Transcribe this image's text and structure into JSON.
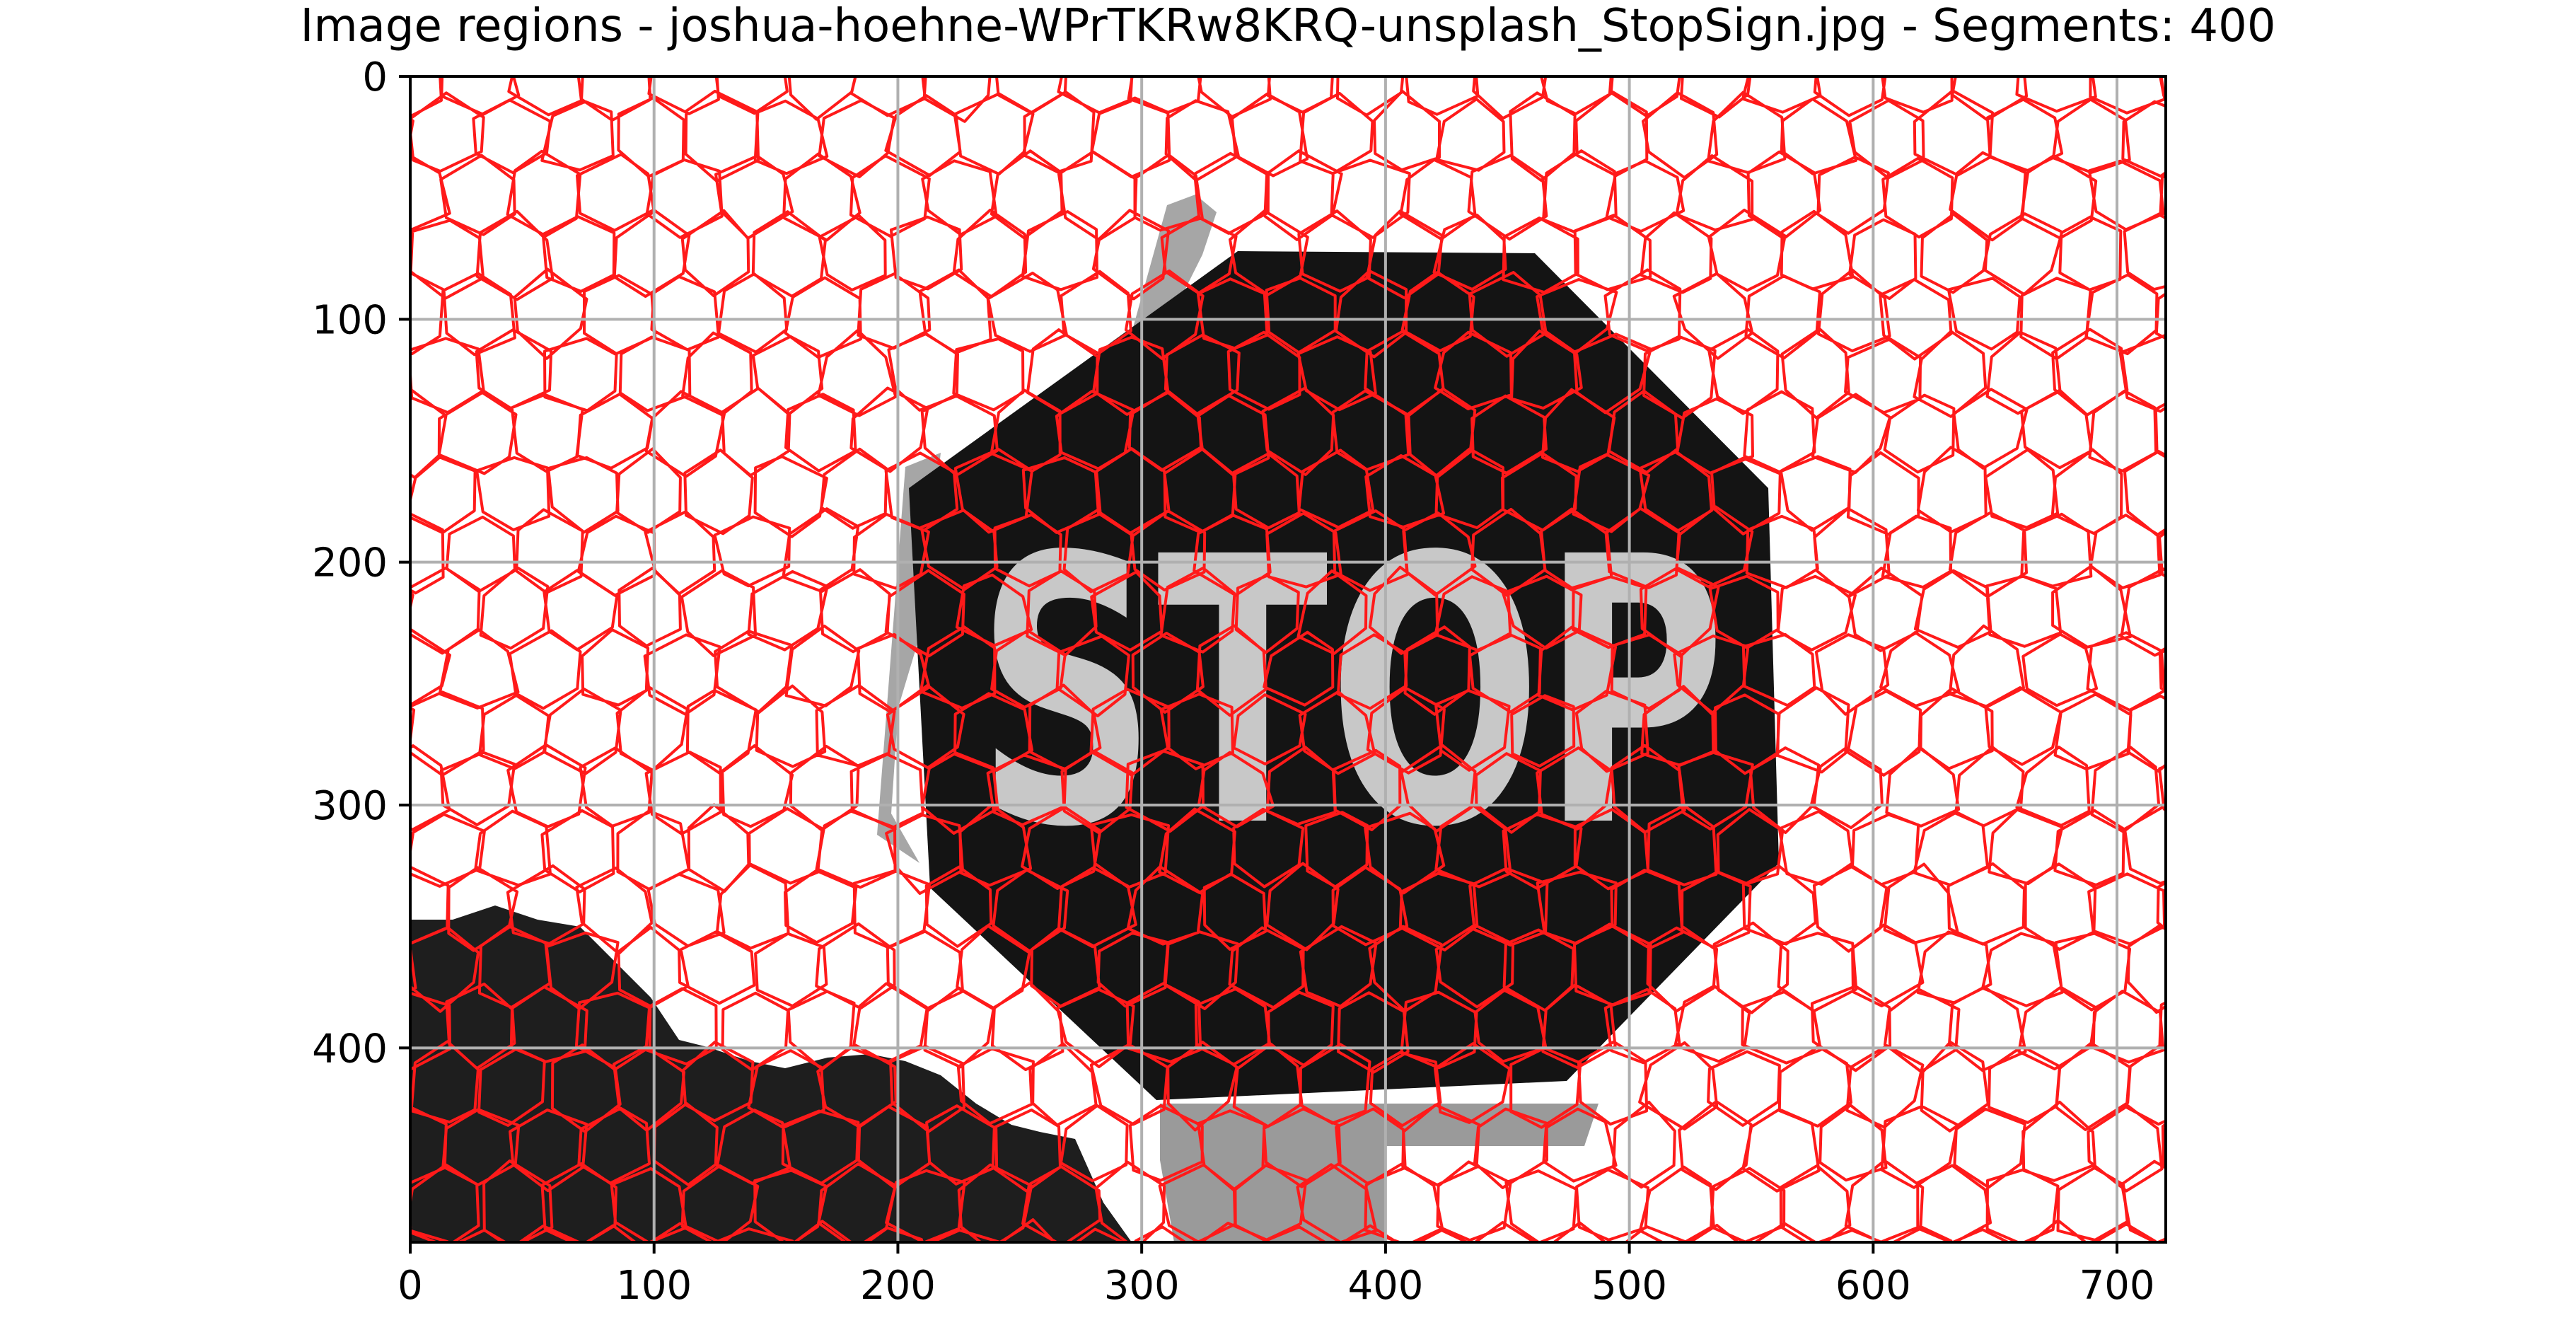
{
  "figure": {
    "title": "Image regions - joshua-hoehne-WPrTKRw8KRQ-unsplash_StopSign.jpg - Segments: 400"
  },
  "chart_data": {
    "type": "heatmap",
    "title": "Image regions - joshua-hoehne-WPrTKRw8KRQ-unsplash_StopSign.jpg - Segments: 400",
    "xlabel": "",
    "ylabel": "",
    "xlim": [
      0,
      720
    ],
    "ylim": [
      480,
      0
    ],
    "y_inverted": true,
    "xticks": [
      0,
      100,
      200,
      300,
      400,
      500,
      600,
      700
    ],
    "yticks": [
      0,
      100,
      200,
      300,
      400
    ],
    "grid": true,
    "segments": 400,
    "segment_boundary_color": "#ff1a1a",
    "grid_color": "#b0b0b0",
    "regions": {
      "sign_fill": "#141414",
      "letters_fill": "#c8c8c8",
      "sign_border_fill": "#a6a6a6",
      "background_fill": "#ffffff",
      "foliage_fill": "#1e1e1e",
      "post_fill": "#9a9a9a"
    },
    "sign_text": "STOP"
  }
}
